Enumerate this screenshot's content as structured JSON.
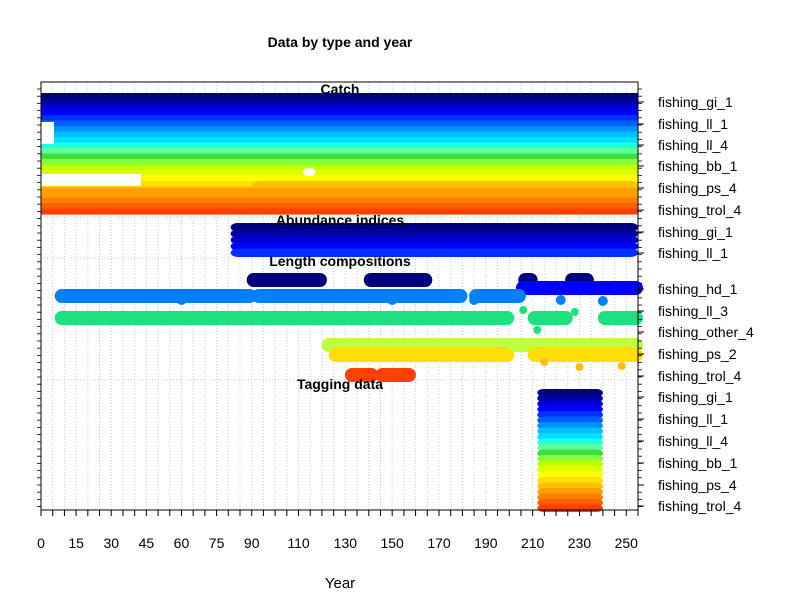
{
  "chart_data": {
    "type": "scatter",
    "title": "Data by type and year",
    "xlabel": "Year",
    "ylabel": "",
    "xlim": [
      0,
      255
    ],
    "grid": true,
    "x_ticks": [
      0,
      15,
      30,
      45,
      60,
      75,
      90,
      110,
      130,
      150,
      170,
      190,
      210,
      230,
      250
    ],
    "palette": {
      "fishing_gi_1": "#00007f",
      "fishing_gi_2": "#00009f",
      "fishing_ll_1": "#0000ff",
      "fishing_ll_2": "#0050ff",
      "fishing_ll_3": "#0080ff",
      "fishing_ll_4": "#00bfff",
      "fishing_hd_1": "#00007f",
      "fishing_bb_1": "#3fff7f",
      "fishing_other_4": "#1fe07f",
      "fishing_ps_2": "#bfff3f",
      "fishing_ps_4": "#ffdf00",
      "fishing_trol_4": "#ff4000"
    },
    "sections": [
      {
        "name": "Catch",
        "labels": [
          "fishing_gi_1",
          "fishing_ll_1",
          "fishing_ll_4",
          "fishing_bb_1",
          "fishing_ps_4",
          "fishing_trol_4"
        ],
        "band_colors": [
          "#00007f",
          "#00009f",
          "#0000cf",
          "#0000ff",
          "#0030ff",
          "#0060ff",
          "#0090ff",
          "#00bfff",
          "#00dfff",
          "#1fffdf",
          "#5fff9f",
          "#3fdf3f",
          "#7fff3f",
          "#bfff00",
          "#dfff00",
          "#ffff00",
          "#ffdf00",
          "#ffbf00",
          "#ff9f00",
          "#ff7f00",
          "#ff5f00",
          "#ff4000"
        ],
        "start": 0,
        "end": 255
      },
      {
        "name": "Abundance indices",
        "labels": [
          "fishing_gi_1",
          "fishing_ll_1"
        ],
        "band_colors": [
          "#00007f",
          "#00009f",
          "#0000cf",
          "#0000ff",
          "#0030ff"
        ],
        "start": 81,
        "end": 255
      },
      {
        "name": "Length compositions",
        "labels": [
          "fishing_hd_1",
          "fishing_ll_3",
          "fishing_other_4",
          "fishing_ps_2",
          "fishing_trol_4"
        ],
        "series": [
          {
            "name": "fishing_hd_1",
            "color": "#00007f",
            "ranges": [
              [
                90,
                120
              ],
              [
                140,
                165
              ],
              [
                206,
                210
              ],
              [
                226,
                234
              ]
            ]
          },
          {
            "name": "fishing_ll_1",
            "color": "#0000ff",
            "ranges": [
              [
                205,
                255
              ]
            ]
          },
          {
            "name": "fishing_ll_3",
            "color": "#0080ff",
            "ranges": [
              [
                8,
                90
              ],
              [
                92,
                180
              ],
              [
                185,
                205
              ]
            ]
          },
          {
            "name": "fishing_other_4",
            "color": "#1fe07f",
            "ranges": [
              [
                8,
                200
              ],
              [
                210,
                225
              ],
              [
                240,
                255
              ]
            ]
          },
          {
            "name": "fishing_ps_2",
            "color": "#bfff3f",
            "ranges": [
              [
                122,
                255
              ]
            ]
          },
          {
            "name": "fishing_ps_4",
            "color": "#ffdf00",
            "ranges": [
              [
                125,
                200
              ],
              [
                210,
                255
              ]
            ]
          },
          {
            "name": "fishing_trol_4",
            "color": "#ff4000",
            "ranges": [
              [
                132,
                142
              ],
              [
                145,
                158
              ]
            ]
          }
        ]
      },
      {
        "name": "Tagging data",
        "labels": [
          "fishing_gi_1",
          "fishing_ll_1",
          "fishing_ll_4",
          "fishing_bb_1",
          "fishing_ps_4",
          "fishing_trol_4"
        ],
        "band_colors": [
          "#00007f",
          "#00009f",
          "#0000cf",
          "#0000ff",
          "#0030ff",
          "#0060ff",
          "#0090ff",
          "#00bfff",
          "#00dfff",
          "#1fffdf",
          "#5fff9f",
          "#3fdf3f",
          "#7fff3f",
          "#bfff00",
          "#dfff00",
          "#ffff00",
          "#ffdf00",
          "#ffbf00",
          "#ff9f00",
          "#ff7f00",
          "#ff5f00",
          "#ff4000"
        ],
        "start": 212,
        "end": 240
      }
    ]
  }
}
